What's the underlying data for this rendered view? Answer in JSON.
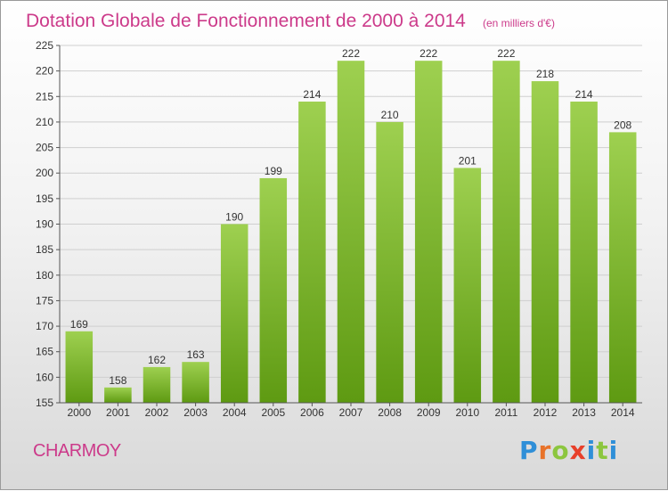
{
  "title": "Dotation Globale de Fonctionnement de 2000 à 2014",
  "subtitle": "(en milliers d'€)",
  "commune": "CHARMOY",
  "brand": {
    "letters": [
      "P",
      "r",
      "o",
      "x",
      "i",
      "t",
      "i"
    ],
    "colors": [
      "#2f8fd8",
      "#e8732a",
      "#8cc63f",
      "#e8402a",
      "#2f8fd8",
      "#8cc63f",
      "#2f8fd8"
    ]
  },
  "colors": {
    "bar_light": "#9ed050",
    "bar_dark": "#5e9a12",
    "accent": "#cc3a8a"
  },
  "chart_data": {
    "type": "bar",
    "categories": [
      "2000",
      "2001",
      "2002",
      "2003",
      "2004",
      "2005",
      "2006",
      "2007",
      "2008",
      "2009",
      "2010",
      "2011",
      "2012",
      "2013",
      "2014"
    ],
    "values": [
      169,
      158,
      162,
      163,
      190,
      199,
      214,
      222,
      210,
      222,
      201,
      222,
      218,
      214,
      208
    ],
    "ylim": [
      155,
      225
    ],
    "yticks": [
      155,
      160,
      165,
      170,
      175,
      180,
      185,
      190,
      195,
      200,
      205,
      210,
      215,
      220,
      225
    ],
    "grid": true,
    "legend": "none",
    "xlabel": "",
    "ylabel": ""
  }
}
